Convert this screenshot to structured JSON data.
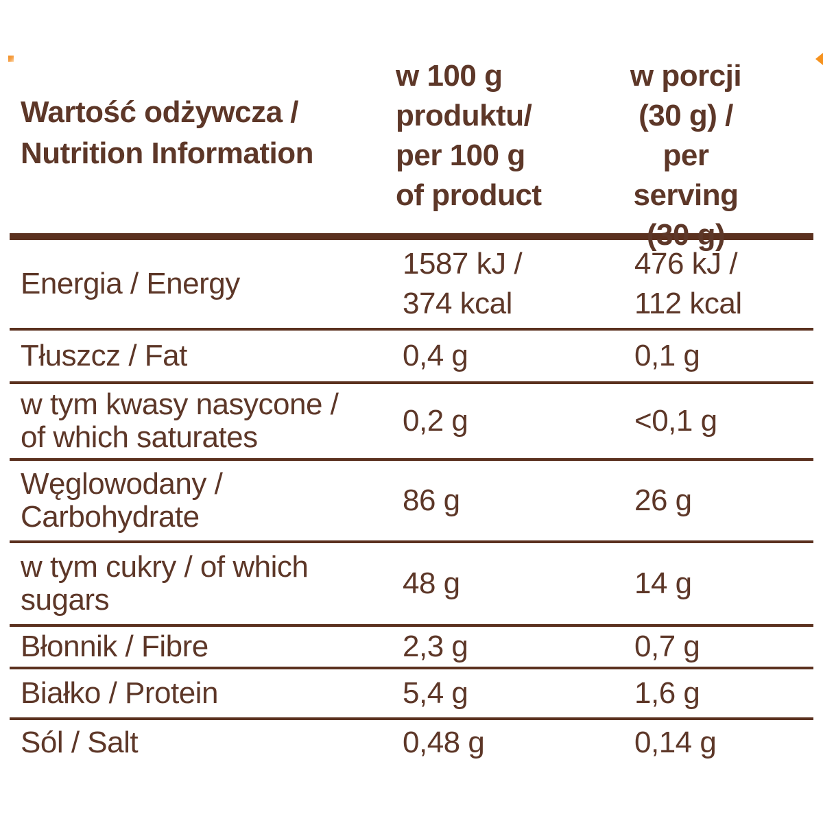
{
  "panel": {
    "title": "Wartość odżywcza /\nNutrition Information",
    "columns": {
      "per100": "w 100 g\nproduktu/\nper 100 g\nof product",
      "serving": "w porcji\n(30 g) /\nper serving\n(30 g)"
    },
    "rows": [
      {
        "label": "Energia / Energy",
        "per100": "1587 kJ /\n374 kcal",
        "serving": "476 kJ /\n112 kcal"
      },
      {
        "label": "Tłuszcz / Fat",
        "per100": "0,4 g",
        "serving": "0,1 g"
      },
      {
        "label": "w tym kwasy nasycone /\nof which saturates",
        "per100": "0,2 g",
        "serving": "<0,1 g"
      },
      {
        "label": "Węglowodany /\nCarbohydrate",
        "per100": "86 g",
        "serving": "26 g"
      },
      {
        "label": "w tym cukry / of which\nsugars",
        "per100": "48 g",
        "serving": "14 g"
      },
      {
        "label": "Błonnik / Fibre",
        "per100": "2,3 g",
        "serving": "0,7 g"
      },
      {
        "label": "Białko / Protein",
        "per100": "5,4 g",
        "serving": "1,6 g"
      },
      {
        "label": "Sól / Salt",
        "per100": "0,48 g",
        "serving": "0,14 g"
      }
    ],
    "colors": {
      "ink": "#5d3728",
      "rule": "#5b311f",
      "accent_orange": "#f6921e"
    }
  }
}
